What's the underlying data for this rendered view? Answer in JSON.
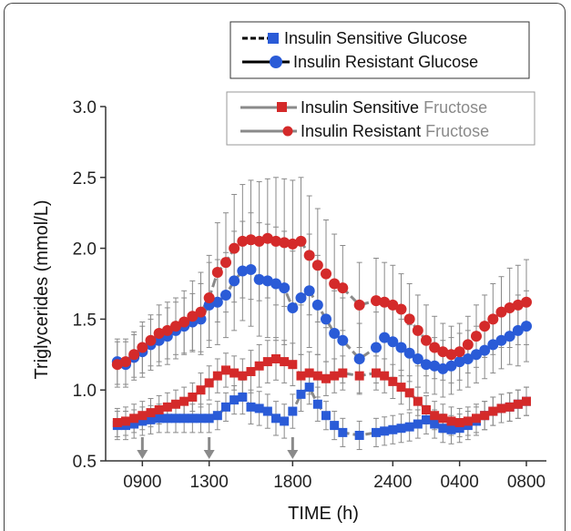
{
  "chart_data": {
    "type": "line",
    "xlabel": "TIME (h)",
    "ylabel": "Triglycerides (mmol/L)",
    "ylim": [
      0.5,
      3.0
    ],
    "yticks": [
      "3.0",
      "2.5",
      "2.0",
      "1.5",
      "1.0",
      "0.5"
    ],
    "xlim": [
      0,
      24
    ],
    "xticks": [
      {
        "label": "0900",
        "hour": 1
      },
      {
        "label": "1300",
        "hour": 5
      },
      {
        "label": "1800",
        "hour": 10
      },
      {
        "label": "2400",
        "hour": 16
      },
      {
        "label": "0400",
        "hour": 20
      },
      {
        "label": "0800",
        "hour": 24
      }
    ],
    "meal_marker_hours": [
      1,
      5,
      10
    ],
    "legend": {
      "glucose": {
        "sensitive_prefix": "Insulin Sensitive ",
        "sensitive_suffix": "Glucose",
        "resistant_prefix": "Insulin Resistant ",
        "resistant_suffix": "Glucose"
      },
      "fructose": {
        "sensitive_prefix": "Insulin Sensitive ",
        "sensitive_suffix": "Fructose",
        "resistant_prefix": "Insulin Resistant ",
        "resistant_suffix": "Fructose"
      }
    },
    "colors": {
      "glucose_marker": "#2a5bd7",
      "fructose_marker": "#d42a2a",
      "glucose_line_legend": "#000000",
      "fructose_line": "#8a8a8a",
      "fructose_suffix_text": "#8a8a8a",
      "line": "#8a8a8a",
      "errorbar": "#8a8a8a",
      "arrow": "#8a8a8a"
    },
    "series": [
      {
        "name": "Insulin Sensitive Glucose",
        "marker": "square",
        "color": "#2a5bd7",
        "points": [
          [
            -0.5,
            0.75,
            0.1
          ],
          [
            0,
            0.75,
            0.1
          ],
          [
            0.5,
            0.76,
            0.1
          ],
          [
            1,
            0.78,
            0.1
          ],
          [
            1.5,
            0.79,
            0.1
          ],
          [
            2,
            0.8,
            0.1
          ],
          [
            2.5,
            0.8,
            0.1
          ],
          [
            3,
            0.8,
            0.1
          ],
          [
            3.5,
            0.8,
            0.1
          ],
          [
            4,
            0.8,
            0.1
          ],
          [
            4.5,
            0.8,
            0.1
          ],
          [
            5,
            0.8,
            0.1
          ],
          [
            5.5,
            0.82,
            0.1
          ],
          [
            6,
            0.88,
            0.1
          ],
          [
            6.5,
            0.93,
            0.1
          ],
          [
            7,
            0.95,
            0.12
          ],
          [
            7.5,
            0.88,
            0.12
          ],
          [
            8,
            0.87,
            0.12
          ],
          [
            8.5,
            0.85,
            0.12
          ],
          [
            9,
            0.8,
            0.12
          ],
          [
            9.5,
            0.78,
            0.12
          ],
          [
            10,
            0.85,
            0.12
          ],
          [
            10.5,
            0.97,
            0.12
          ],
          [
            11,
            1.02,
            0.12
          ],
          [
            11.5,
            0.9,
            0.12
          ],
          [
            12,
            0.82,
            0.1
          ],
          [
            12.5,
            0.75,
            0.1
          ],
          [
            13,
            0.7,
            0.1
          ],
          [
            14,
            0.68,
            0.1
          ],
          [
            15,
            0.7,
            0.1
          ],
          [
            15.5,
            0.71,
            0.1
          ],
          [
            16,
            0.72,
            0.1
          ],
          [
            16.5,
            0.73,
            0.1
          ],
          [
            17,
            0.74,
            0.1
          ],
          [
            17.5,
            0.76,
            0.1
          ],
          [
            18,
            0.79,
            0.1
          ],
          [
            18.5,
            0.76,
            0.1
          ],
          [
            19,
            0.73,
            0.1
          ],
          [
            19.5,
            0.72,
            0.1
          ],
          [
            20,
            0.73,
            0.1
          ],
          [
            20.5,
            0.75,
            0.1
          ],
          [
            21,
            0.78,
            0.1
          ],
          [
            21.5,
            0.82,
            0.1
          ],
          [
            22,
            0.85,
            0.1
          ],
          [
            22.5,
            0.87,
            0.1
          ],
          [
            23,
            0.88,
            0.1
          ],
          [
            23.5,
            0.9,
            0.1
          ],
          [
            24,
            0.92,
            0.1
          ]
        ]
      },
      {
        "name": "Insulin Resistant Glucose",
        "marker": "circle",
        "color": "#2a5bd7",
        "points": [
          [
            -0.5,
            1.2,
            0.16
          ],
          [
            0,
            1.18,
            0.16
          ],
          [
            0.5,
            1.23,
            0.16
          ],
          [
            1,
            1.27,
            0.18
          ],
          [
            1.5,
            1.32,
            0.18
          ],
          [
            2,
            1.35,
            0.18
          ],
          [
            2.5,
            1.38,
            0.2
          ],
          [
            3,
            1.42,
            0.2
          ],
          [
            3.5,
            1.45,
            0.2
          ],
          [
            4,
            1.48,
            0.2
          ],
          [
            4.5,
            1.5,
            0.25
          ],
          [
            5,
            1.6,
            0.3
          ],
          [
            5.5,
            1.62,
            0.3
          ],
          [
            6,
            1.67,
            0.3
          ],
          [
            6.5,
            1.77,
            0.35
          ],
          [
            7,
            1.84,
            0.35
          ],
          [
            7.5,
            1.85,
            0.4
          ],
          [
            8,
            1.78,
            0.4
          ],
          [
            8.5,
            1.77,
            0.4
          ],
          [
            9,
            1.75,
            0.4
          ],
          [
            9.5,
            1.72,
            0.4
          ],
          [
            10,
            1.58,
            0.4
          ],
          [
            10.5,
            1.65,
            0.4
          ],
          [
            11,
            1.7,
            0.4
          ],
          [
            11.5,
            1.6,
            0.35
          ],
          [
            12,
            1.5,
            0.3
          ],
          [
            12.5,
            1.4,
            0.3
          ],
          [
            13,
            1.35,
            0.3
          ],
          [
            14,
            1.22,
            0.25
          ],
          [
            15,
            1.3,
            0.25
          ],
          [
            15.5,
            1.37,
            0.25
          ],
          [
            16,
            1.34,
            0.25
          ],
          [
            16.5,
            1.3,
            0.2
          ],
          [
            17,
            1.26,
            0.2
          ],
          [
            17.5,
            1.22,
            0.2
          ],
          [
            18,
            1.18,
            0.2
          ],
          [
            18.5,
            1.17,
            0.2
          ],
          [
            19,
            1.15,
            0.2
          ],
          [
            19.5,
            1.17,
            0.2
          ],
          [
            20,
            1.2,
            0.2
          ],
          [
            20.5,
            1.22,
            0.2
          ],
          [
            21,
            1.25,
            0.2
          ],
          [
            21.5,
            1.28,
            0.2
          ],
          [
            22,
            1.32,
            0.2
          ],
          [
            22.5,
            1.35,
            0.2
          ],
          [
            23,
            1.38,
            0.2
          ],
          [
            23.5,
            1.42,
            0.25
          ],
          [
            24,
            1.45,
            0.25
          ]
        ]
      },
      {
        "name": "Insulin Sensitive Fructose",
        "marker": "square",
        "color": "#d42a2a",
        "points": [
          [
            -0.5,
            0.77,
            0.1
          ],
          [
            0,
            0.78,
            0.1
          ],
          [
            0.5,
            0.8,
            0.1
          ],
          [
            1,
            0.82,
            0.1
          ],
          [
            1.5,
            0.84,
            0.1
          ],
          [
            2,
            0.86,
            0.1
          ],
          [
            2.5,
            0.88,
            0.1
          ],
          [
            3,
            0.9,
            0.1
          ],
          [
            3.5,
            0.92,
            0.1
          ],
          [
            4,
            0.95,
            0.1
          ],
          [
            4.5,
            1.0,
            0.12
          ],
          [
            5,
            1.05,
            0.12
          ],
          [
            5.5,
            1.1,
            0.12
          ],
          [
            6,
            1.14,
            0.12
          ],
          [
            6.5,
            1.12,
            0.12
          ],
          [
            7,
            1.1,
            0.12
          ],
          [
            7.5,
            1.13,
            0.15
          ],
          [
            8,
            1.17,
            0.15
          ],
          [
            8.5,
            1.2,
            0.15
          ],
          [
            9,
            1.22,
            0.15
          ],
          [
            9.5,
            1.2,
            0.15
          ],
          [
            10,
            1.18,
            0.15
          ],
          [
            10.5,
            1.1,
            0.15
          ],
          [
            11,
            1.12,
            0.15
          ],
          [
            11.5,
            1.1,
            0.15
          ],
          [
            12,
            1.08,
            0.12
          ],
          [
            12.5,
            1.1,
            0.12
          ],
          [
            13,
            1.12,
            0.12
          ],
          [
            14,
            1.1,
            0.12
          ],
          [
            15,
            1.12,
            0.12
          ],
          [
            15.5,
            1.1,
            0.12
          ],
          [
            16,
            1.06,
            0.12
          ],
          [
            16.5,
            1.02,
            0.12
          ],
          [
            17,
            0.98,
            0.12
          ],
          [
            17.5,
            0.92,
            0.1
          ],
          [
            18,
            0.86,
            0.1
          ],
          [
            18.5,
            0.82,
            0.1
          ],
          [
            19,
            0.8,
            0.1
          ],
          [
            19.5,
            0.78,
            0.1
          ],
          [
            20,
            0.77,
            0.1
          ],
          [
            20.5,
            0.78,
            0.1
          ],
          [
            21,
            0.8,
            0.1
          ],
          [
            21.5,
            0.82,
            0.1
          ],
          [
            22,
            0.85,
            0.1
          ],
          [
            22.5,
            0.87,
            0.1
          ],
          [
            23,
            0.88,
            0.1
          ],
          [
            23.5,
            0.9,
            0.1
          ],
          [
            24,
            0.92,
            0.1
          ]
        ]
      },
      {
        "name": "Insulin Resistant Fructose",
        "marker": "circle",
        "color": "#d42a2a",
        "points": [
          [
            -0.5,
            1.18,
            0.16
          ],
          [
            0,
            1.2,
            0.16
          ],
          [
            0.5,
            1.25,
            0.16
          ],
          [
            1,
            1.3,
            0.18
          ],
          [
            1.5,
            1.35,
            0.18
          ],
          [
            2,
            1.4,
            0.2
          ],
          [
            2.5,
            1.42,
            0.2
          ],
          [
            3,
            1.45,
            0.2
          ],
          [
            3.5,
            1.48,
            0.22
          ],
          [
            4,
            1.52,
            0.25
          ],
          [
            4.5,
            1.55,
            0.28
          ],
          [
            5,
            1.65,
            0.3
          ],
          [
            5.5,
            1.83,
            0.35
          ],
          [
            6,
            1.9,
            0.35
          ],
          [
            6.5,
            2.0,
            0.38
          ],
          [
            7,
            2.05,
            0.4
          ],
          [
            7.5,
            2.06,
            0.42
          ],
          [
            8,
            2.05,
            0.42
          ],
          [
            8.5,
            2.07,
            0.42
          ],
          [
            9,
            2.05,
            0.45
          ],
          [
            9.5,
            2.04,
            0.45
          ],
          [
            10,
            2.03,
            0.45
          ],
          [
            10.5,
            2.05,
            0.45
          ],
          [
            11,
            1.95,
            0.42
          ],
          [
            11.5,
            1.88,
            0.4
          ],
          [
            12,
            1.82,
            0.38
          ],
          [
            12.5,
            1.75,
            0.35
          ],
          [
            13,
            1.72,
            0.3
          ],
          [
            14,
            1.6,
            0.3
          ],
          [
            15,
            1.63,
            0.3
          ],
          [
            15.5,
            1.62,
            0.28
          ],
          [
            16,
            1.6,
            0.28
          ],
          [
            16.5,
            1.57,
            0.25
          ],
          [
            17,
            1.5,
            0.25
          ],
          [
            17.5,
            1.42,
            0.25
          ],
          [
            18,
            1.35,
            0.25
          ],
          [
            18.5,
            1.3,
            0.22
          ],
          [
            19,
            1.27,
            0.2
          ],
          [
            19.5,
            1.25,
            0.2
          ],
          [
            20,
            1.27,
            0.2
          ],
          [
            20.5,
            1.32,
            0.2
          ],
          [
            21,
            1.38,
            0.22
          ],
          [
            21.5,
            1.45,
            0.22
          ],
          [
            22,
            1.5,
            0.25
          ],
          [
            22.5,
            1.55,
            0.25
          ],
          [
            23,
            1.58,
            0.28
          ],
          [
            23.5,
            1.6,
            0.28
          ],
          [
            24,
            1.62,
            0.3
          ]
        ]
      }
    ]
  }
}
